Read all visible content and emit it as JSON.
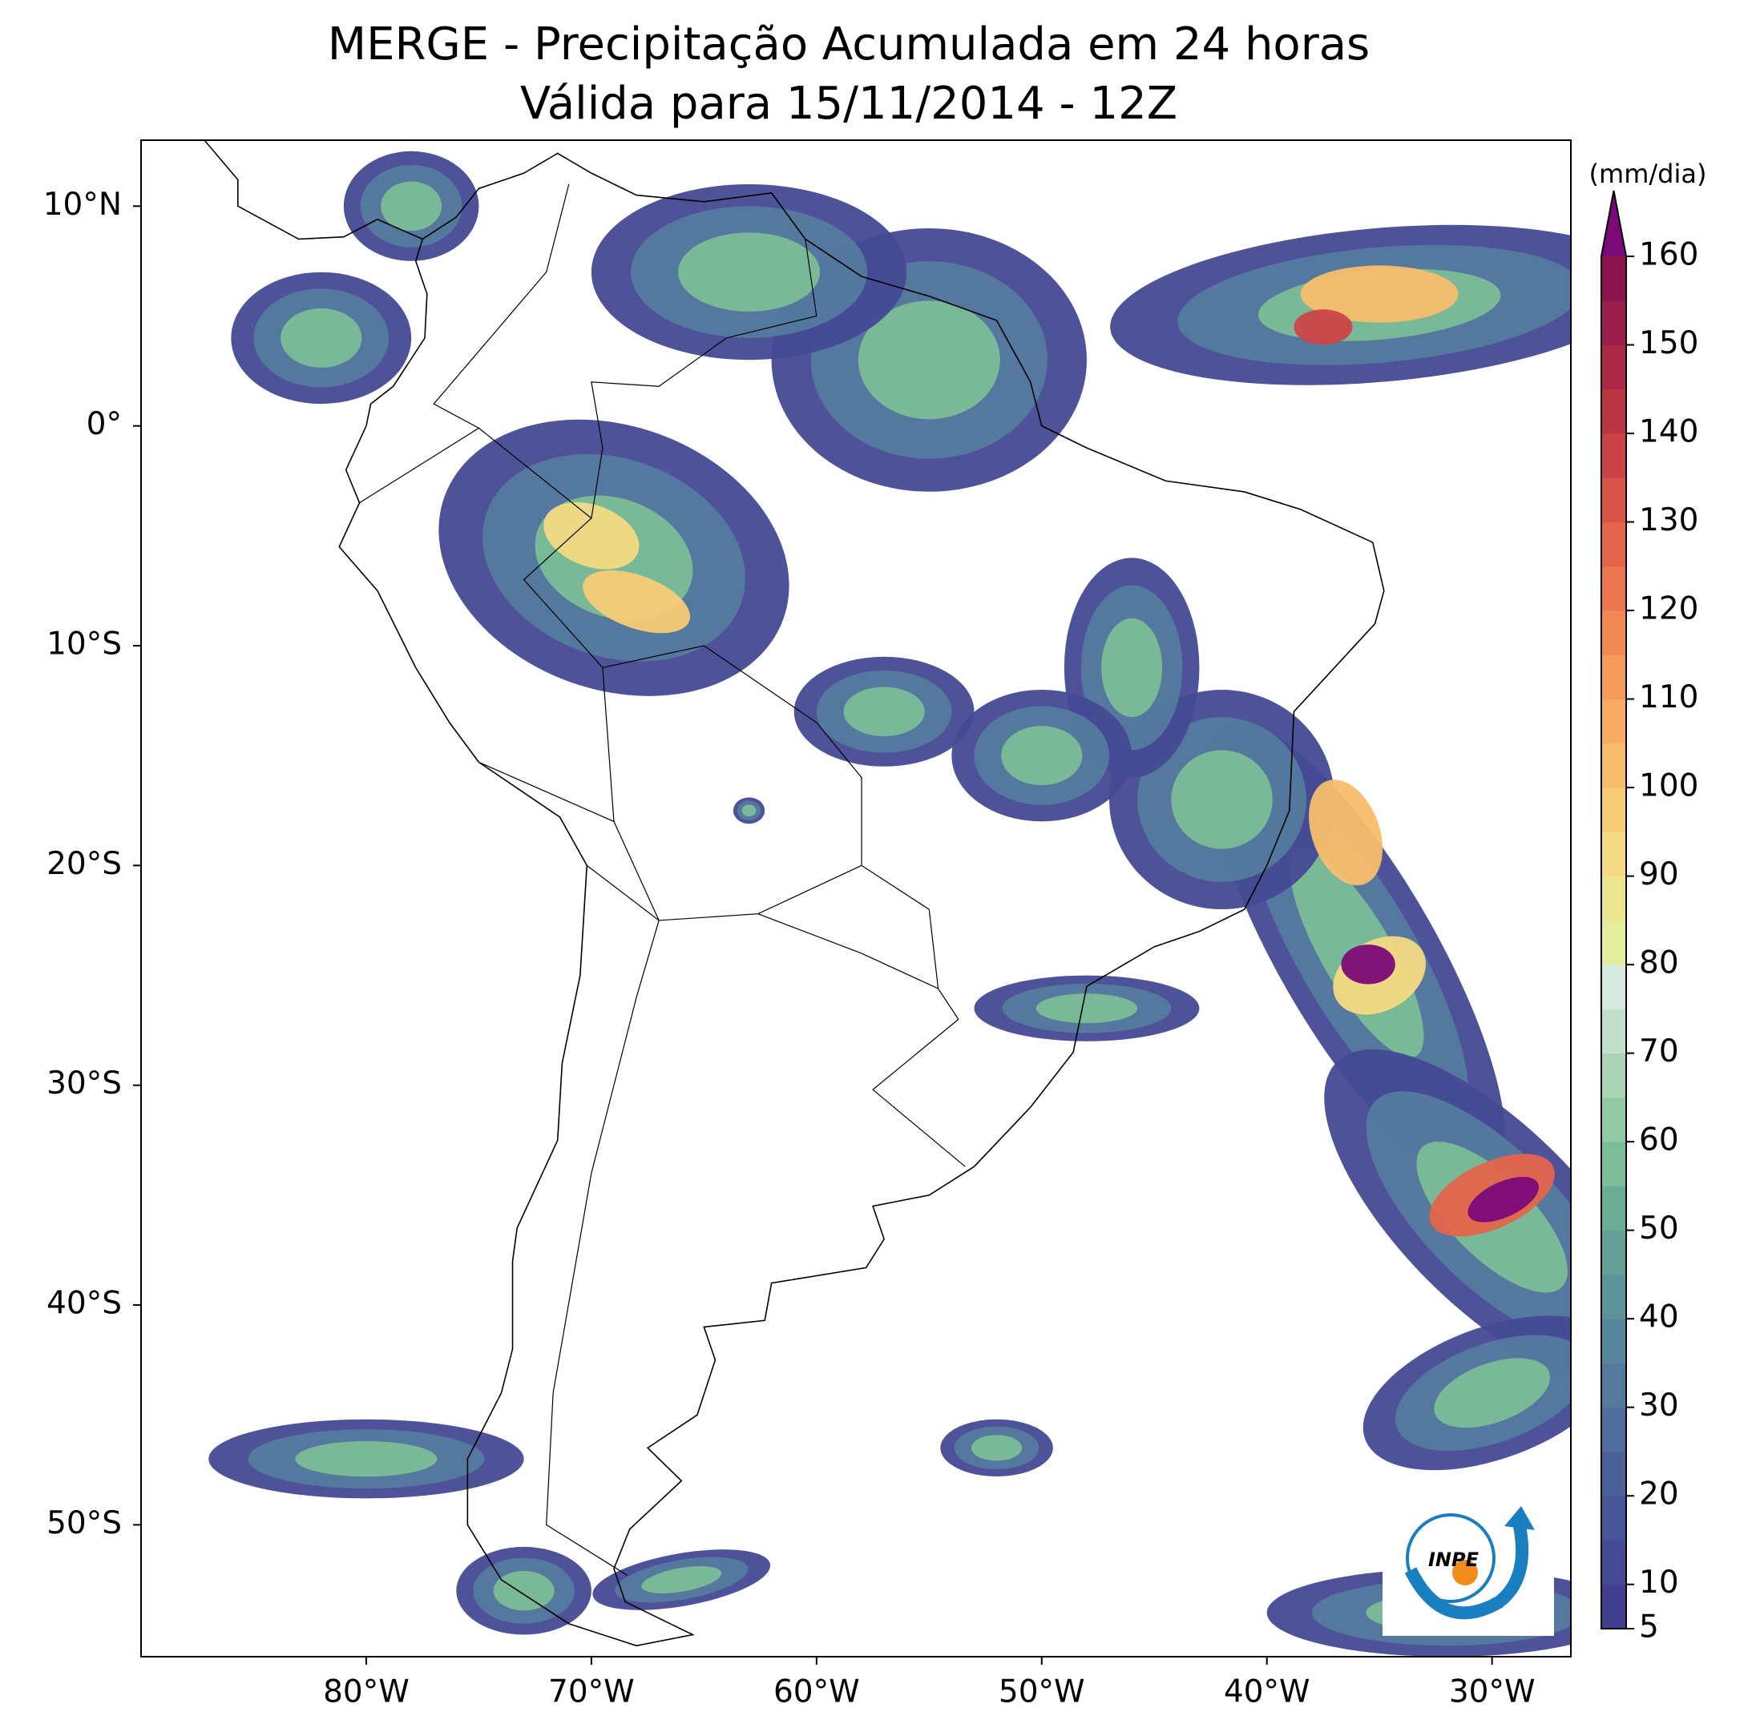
{
  "chart_data": {
    "type": "contour-map",
    "title": "MERGE - Precipitação Acumulada em 24 horas",
    "subtitle": "Válida para 15/11/2014 - 12Z",
    "xlim": [
      -90,
      -26.5
    ],
    "ylim": [
      -56,
      13
    ],
    "xticks": [
      {
        "value": -80,
        "label": "80°W"
      },
      {
        "value": -70,
        "label": "70°W"
      },
      {
        "value": -60,
        "label": "60°W"
      },
      {
        "value": -50,
        "label": "50°W"
      },
      {
        "value": -40,
        "label": "40°W"
      },
      {
        "value": -30,
        "label": "30°W"
      }
    ],
    "yticks": [
      {
        "value": 10,
        "label": "10°N"
      },
      {
        "value": 0,
        "label": "0°"
      },
      {
        "value": -10,
        "label": "10°S"
      },
      {
        "value": -20,
        "label": "20°S"
      },
      {
        "value": -30,
        "label": "30°S"
      },
      {
        "value": -40,
        "label": "40°S"
      },
      {
        "value": -50,
        "label": "50°S"
      }
    ],
    "colorbar": {
      "label": "(mm/dia)",
      "lim": [
        5,
        160
      ],
      "ticks": [
        5,
        10,
        20,
        30,
        40,
        50,
        60,
        70,
        80,
        90,
        100,
        110,
        120,
        130,
        140,
        150,
        160
      ],
      "colors": [
        "#413f8d",
        "#444a93",
        "#485598",
        "#4c619c",
        "#506d9e",
        "#547a9e",
        "#58879c",
        "#5d949a",
        "#63a198",
        "#6aae96",
        "#7bbd98",
        "#92c9a3",
        "#aad4b5",
        "#c2e0cc",
        "#d6eae2",
        "#e3ee9c",
        "#ece58f",
        "#f3da83",
        "#f7cc76",
        "#f8bd6c",
        "#f8ac64",
        "#f69a5c",
        "#f28955",
        "#ec764f",
        "#e4644b",
        "#d95348",
        "#cc4346",
        "#bc3545",
        "#ab2947",
        "#9a1e4b",
        "#8c154f"
      ],
      "extend_color": "#7a0a78"
    },
    "logo": "INPE"
  }
}
